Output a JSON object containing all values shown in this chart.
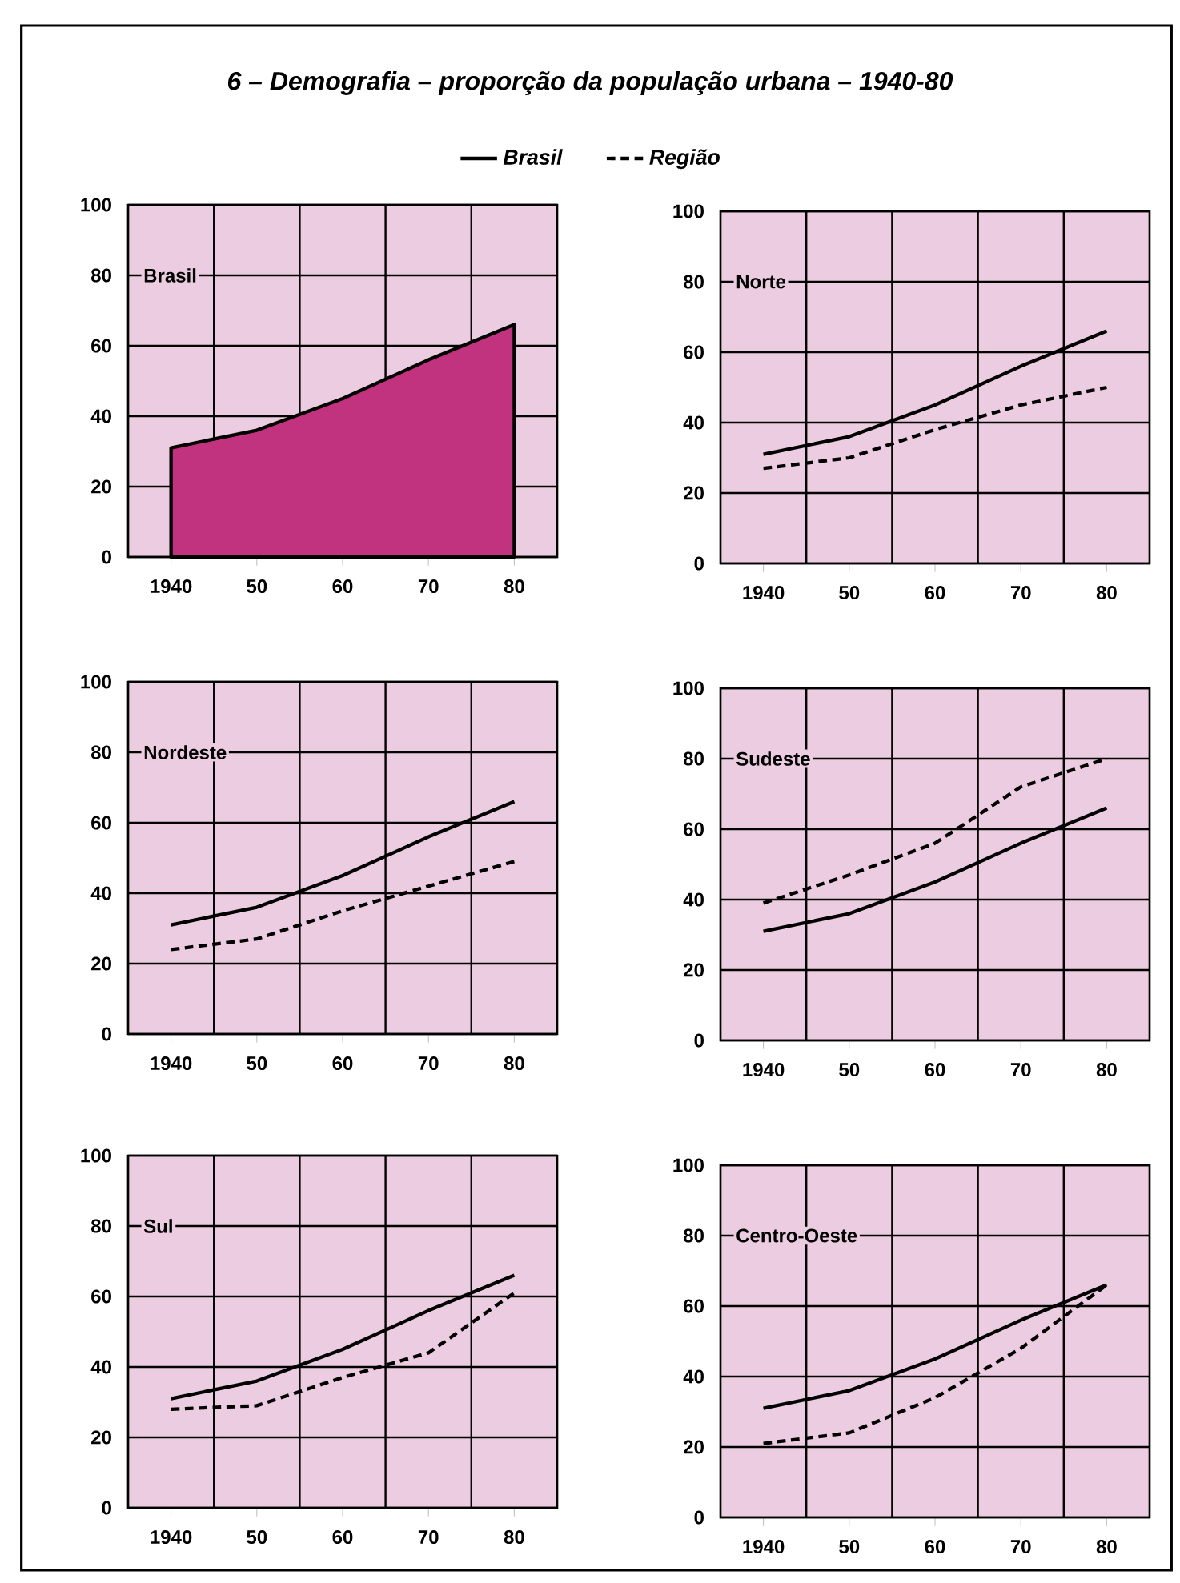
{
  "chart_data": [
    {
      "type": "other",
      "title": "6 – Demografia – proporção da população urbana – 1940-80"
    },
    {
      "type": "area",
      "annotations": [
        "Brasil"
      ],
      "x": [
        1940,
        1950,
        1960,
        1970,
        1980
      ],
      "xlim": [
        1935,
        1985
      ],
      "ylim": [
        0,
        100
      ],
      "grid": true,
      "xticks": [
        {
          "value": 1940,
          "label": "1940"
        },
        {
          "value": 1945,
          "label": null
        },
        {
          "value": 1950,
          "label": "50"
        },
        {
          "value": 1955,
          "label": null
        },
        {
          "value": 1960,
          "label": "60"
        },
        {
          "value": 1965,
          "label": null
        },
        {
          "value": 1970,
          "label": "70"
        },
        {
          "value": 1975,
          "label": null
        },
        {
          "value": 1980,
          "label": "80"
        }
      ],
      "yticks": [
        0,
        20,
        40,
        60,
        80,
        100
      ],
      "series": [
        {
          "type": "area",
          "color": "#c2337f",
          "values": [
            31,
            36,
            45,
            56,
            66
          ]
        }
      ]
    },
    {
      "type": "line",
      "annotations": [
        "Norte"
      ],
      "x": [
        1940,
        1950,
        1960,
        1970,
        1980
      ],
      "xlim": [
        1935,
        1985
      ],
      "ylim": [
        0,
        100
      ],
      "grid": true,
      "legend": "top",
      "xticks": [
        {
          "value": 1940,
          "label": "1940"
        },
        {
          "value": 1945,
          "label": null
        },
        {
          "value": 1950,
          "label": "50"
        },
        {
          "value": 1955,
          "label": null
        },
        {
          "value": 1960,
          "label": "60"
        },
        {
          "value": 1965,
          "label": null
        },
        {
          "value": 1970,
          "label": "70"
        },
        {
          "value": 1975,
          "label": null
        },
        {
          "value": 1980,
          "label": "80"
        }
      ],
      "yticks": [
        0,
        20,
        40,
        60,
        80,
        100
      ],
      "series": [
        {
          "name": "Brasil",
          "color": "#000000",
          "line_style": "solid",
          "values": [
            31,
            36,
            45,
            56,
            66
          ]
        },
        {
          "name": "Região",
          "color": "#000000",
          "line_style": "dashed",
          "values": [
            27,
            30,
            38,
            45,
            50
          ]
        }
      ]
    },
    {
      "type": "line",
      "annotations": [
        "Nordeste"
      ],
      "x": [
        1940,
        1950,
        1960,
        1970,
        1980
      ],
      "xlim": [
        1935,
        1985
      ],
      "ylim": [
        0,
        100
      ],
      "grid": true,
      "xticks": [
        {
          "value": 1940,
          "label": "1940"
        },
        {
          "value": 1945,
          "label": null
        },
        {
          "value": 1950,
          "label": "50"
        },
        {
          "value": 1955,
          "label": null
        },
        {
          "value": 1960,
          "label": "60"
        },
        {
          "value": 1965,
          "label": null
        },
        {
          "value": 1970,
          "label": "70"
        },
        {
          "value": 1975,
          "label": null
        },
        {
          "value": 1980,
          "label": "80"
        }
      ],
      "yticks": [
        0,
        20,
        40,
        60,
        80,
        100
      ],
      "series": [
        {
          "color": "#000000",
          "line_style": "solid",
          "values": [
            31,
            36,
            45,
            56,
            66
          ]
        },
        {
          "color": "#000000",
          "line_style": "dashed",
          "values": [
            24,
            27,
            35,
            42,
            49
          ]
        }
      ]
    },
    {
      "type": "line",
      "annotations": [
        "Sudeste"
      ],
      "x": [
        1940,
        1950,
        1960,
        1970,
        1980
      ],
      "xlim": [
        1935,
        1985
      ],
      "ylim": [
        0,
        100
      ],
      "grid": true,
      "xticks": [
        {
          "value": 1940,
          "label": "1940"
        },
        {
          "value": 1945,
          "label": null
        },
        {
          "value": 1950,
          "label": "50"
        },
        {
          "value": 1955,
          "label": null
        },
        {
          "value": 1960,
          "label": "60"
        },
        {
          "value": 1965,
          "label": null
        },
        {
          "value": 1970,
          "label": "70"
        },
        {
          "value": 1975,
          "label": null
        },
        {
          "value": 1980,
          "label": "80"
        }
      ],
      "yticks": [
        0,
        20,
        40,
        60,
        80,
        100
      ],
      "series": [
        {
          "color": "#000000",
          "line_style": "solid",
          "values": [
            31,
            36,
            45,
            56,
            66
          ]
        },
        {
          "color": "#000000",
          "line_style": "dashed",
          "values": [
            39,
            47,
            56,
            72,
            80
          ]
        }
      ]
    },
    {
      "type": "line",
      "annotations": [
        "Sul"
      ],
      "x": [
        1940,
        1950,
        1960,
        1970,
        1980
      ],
      "xlim": [
        1935,
        1985
      ],
      "ylim": [
        0,
        100
      ],
      "grid": true,
      "xticks": [
        {
          "value": 1940,
          "label": "1940"
        },
        {
          "value": 1945,
          "label": null
        },
        {
          "value": 1950,
          "label": "50"
        },
        {
          "value": 1955,
          "label": null
        },
        {
          "value": 1960,
          "label": "60"
        },
        {
          "value": 1965,
          "label": null
        },
        {
          "value": 1970,
          "label": "70"
        },
        {
          "value": 1975,
          "label": null
        },
        {
          "value": 1980,
          "label": "80"
        }
      ],
      "yticks": [
        0,
        20,
        40,
        60,
        80,
        100
      ],
      "series": [
        {
          "color": "#000000",
          "line_style": "solid",
          "values": [
            31,
            36,
            45,
            56,
            66
          ]
        },
        {
          "color": "#000000",
          "line_style": "dashed",
          "values": [
            28,
            29,
            37,
            44,
            61
          ]
        }
      ]
    },
    {
      "type": "line",
      "annotations": [
        "Centro-Oeste"
      ],
      "x": [
        1940,
        1950,
        1960,
        1970,
        1980
      ],
      "xlim": [
        1935,
        1985
      ],
      "ylim": [
        0,
        100
      ],
      "grid": true,
      "xticks": [
        {
          "value": 1940,
          "label": "1940"
        },
        {
          "value": 1945,
          "label": null
        },
        {
          "value": 1950,
          "label": "50"
        },
        {
          "value": 1955,
          "label": null
        },
        {
          "value": 1960,
          "label": "60"
        },
        {
          "value": 1965,
          "label": null
        },
        {
          "value": 1970,
          "label": "70"
        },
        {
          "value": 1975,
          "label": null
        },
        {
          "value": 1980,
          "label": "80"
        }
      ],
      "yticks": [
        0,
        20,
        40,
        60,
        80,
        100
      ],
      "series": [
        {
          "color": "#000000",
          "line_style": "solid",
          "values": [
            31,
            36,
            45,
            56,
            66
          ]
        },
        {
          "color": "#000000",
          "line_style": "dashed",
          "values": [
            21,
            24,
            34,
            48,
            66
          ]
        }
      ]
    }
  ]
}
